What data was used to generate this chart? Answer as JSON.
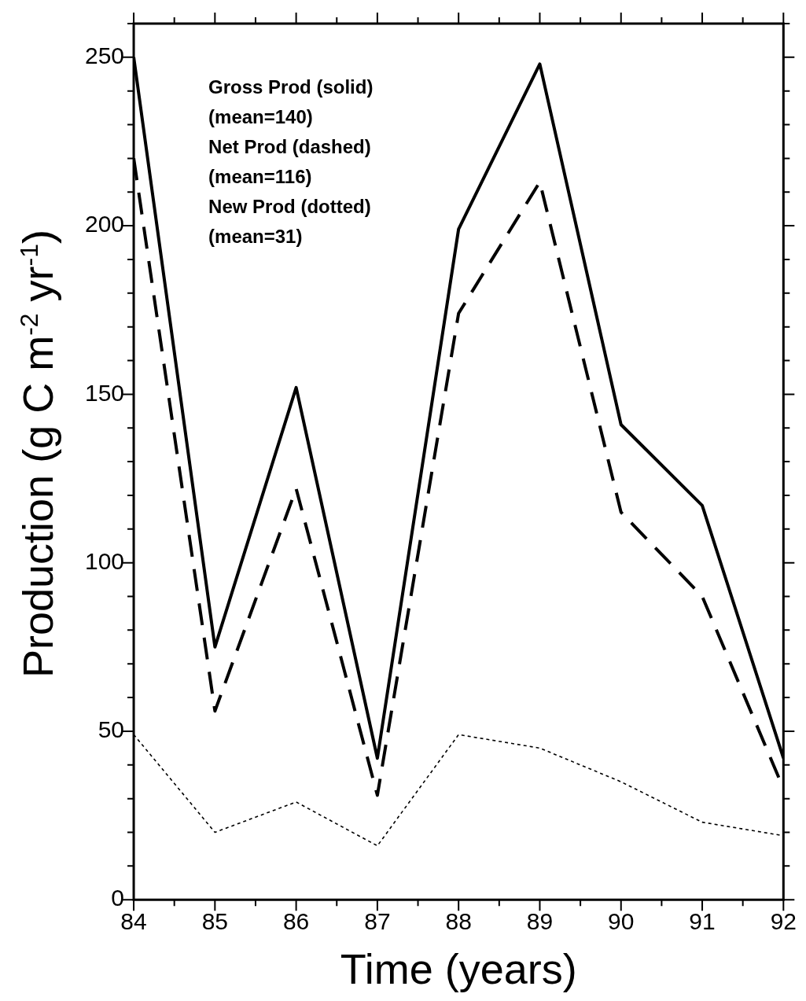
{
  "chart_data": {
    "type": "line",
    "xlabel": "Time (years)",
    "ylabel": "Production (g C m$^{-2}$ yr$^{-1}$)",
    "x": [
      84,
      85,
      86,
      87,
      88,
      89,
      90,
      91,
      92
    ],
    "series": [
      {
        "color": "#000000",
        "line_style": "solid",
        "values": [
          250,
          75,
          152,
          42,
          199,
          248,
          141,
          117,
          42
        ]
      },
      {
        "color": "#000000",
        "line_style": "dashed",
        "values": [
          220,
          56,
          122,
          31,
          174,
          213,
          115,
          90,
          33
        ]
      },
      {
        "color": "#000000",
        "line_style": "dotted",
        "values": [
          49,
          20,
          29,
          16,
          49,
          45,
          35,
          23,
          19
        ]
      }
    ],
    "xlim": [
      84,
      92
    ],
    "xticks": [
      84,
      {
        "value": 84.5,
        "label": null
      },
      85,
      {
        "value": 85.5,
        "label": null
      },
      86,
      {
        "value": 86.5,
        "label": null
      },
      87,
      {
        "value": 87.5,
        "label": null
      },
      88,
      {
        "value": 88.5,
        "label": null
      },
      89,
      {
        "value": 89.5,
        "label": null
      },
      90,
      {
        "value": 90.5,
        "label": null
      },
      91,
      {
        "value": 91.5,
        "label": null
      },
      92
    ],
    "ylim": [
      0,
      260
    ],
    "yticks": [
      0,
      {
        "value": 10,
        "label": null
      },
      {
        "value": 20,
        "label": null
      },
      {
        "value": 30,
        "label": null
      },
      {
        "value": 40,
        "label": null
      },
      50,
      {
        "value": 60,
        "label": null
      },
      {
        "value": 70,
        "label": null
      },
      {
        "value": 80,
        "label": null
      },
      {
        "value": 90,
        "label": null
      },
      100,
      {
        "value": 110,
        "label": null
      },
      {
        "value": 120,
        "label": null
      },
      {
        "value": 130,
        "label": null
      },
      {
        "value": 140,
        "label": null
      },
      150,
      {
        "value": 160,
        "label": null
      },
      {
        "value": 170,
        "label": null
      },
      {
        "value": 180,
        "label": null
      },
      {
        "value": 190,
        "label": null
      },
      200,
      {
        "value": 210,
        "label": null
      },
      {
        "value": 220,
        "label": null
      },
      {
        "value": 230,
        "label": null
      },
      {
        "value": 240,
        "label": null
      },
      250,
      {
        "value": 260,
        "label": null
      }
    ],
    "grid": false,
    "legend": false,
    "marker": "none",
    "annotations": [
      "Gross Prod (solid)",
      "(mean=140)",
      "Net Prod (dashed)",
      "(mean=116)",
      "New Prod (dotted)",
      "(mean=31)"
    ]
  }
}
